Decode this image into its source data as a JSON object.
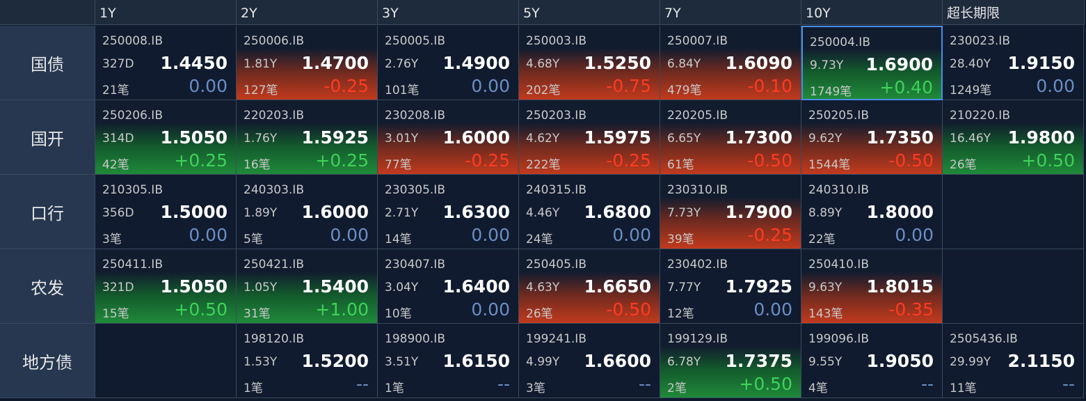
{
  "header": {
    "columns": [
      "1Y",
      "2Y",
      "3Y",
      "5Y",
      "7Y",
      "10Y",
      "超长期限"
    ]
  },
  "rows": [
    {
      "label": "国债",
      "cells": [
        {
          "code": "250008.IB",
          "term": "327D",
          "yield": "1.4450",
          "count": "21笔",
          "change": "0.00"
        },
        {
          "code": "250006.IB",
          "term": "1.81Y",
          "yield": "1.4700",
          "count": "127笔",
          "change": "-0.25"
        },
        {
          "code": "250005.IB",
          "term": "2.76Y",
          "yield": "1.4900",
          "count": "101笔",
          "change": "0.00"
        },
        {
          "code": "250003.IB",
          "term": "4.68Y",
          "yield": "1.5250",
          "count": "202笔",
          "change": "-0.75"
        },
        {
          "code": "250007.IB",
          "term": "6.84Y",
          "yield": "1.6090",
          "count": "479笔",
          "change": "-0.10"
        },
        {
          "code": "250004.IB",
          "term": "9.73Y",
          "yield": "1.6900",
          "count": "1749笔",
          "change": "+0.40"
        },
        {
          "code": "230023.IB",
          "term": "28.40Y",
          "yield": "1.9150",
          "count": "1249笔",
          "change": "0.00"
        }
      ]
    },
    {
      "label": "国开",
      "cells": [
        {
          "code": "250206.IB",
          "term": "314D",
          "yield": "1.5050",
          "count": "42笔",
          "change": "+0.25"
        },
        {
          "code": "220203.IB",
          "term": "1.76Y",
          "yield": "1.5925",
          "count": "16笔",
          "change": "+0.25"
        },
        {
          "code": "230208.IB",
          "term": "3.01Y",
          "yield": "1.6000",
          "count": "77笔",
          "change": "-0.25"
        },
        {
          "code": "250203.IB",
          "term": "4.62Y",
          "yield": "1.5975",
          "count": "222笔",
          "change": "-0.25"
        },
        {
          "code": "220205.IB",
          "term": "6.65Y",
          "yield": "1.7300",
          "count": "61笔",
          "change": "-0.50"
        },
        {
          "code": "250205.IB",
          "term": "9.62Y",
          "yield": "1.7350",
          "count": "1544笔",
          "change": "-0.50"
        },
        {
          "code": "210220.IB",
          "term": "16.46Y",
          "yield": "1.9800",
          "count": "26笔",
          "change": "+0.50"
        }
      ]
    },
    {
      "label": "口行",
      "cells": [
        {
          "code": "210305.IB",
          "term": "356D",
          "yield": "1.5000",
          "count": "3笔",
          "change": "0.00"
        },
        {
          "code": "240303.IB",
          "term": "1.89Y",
          "yield": "1.6000",
          "count": "5笔",
          "change": "0.00"
        },
        {
          "code": "230305.IB",
          "term": "2.71Y",
          "yield": "1.6300",
          "count": "14笔",
          "change": "0.00"
        },
        {
          "code": "240315.IB",
          "term": "4.46Y",
          "yield": "1.6800",
          "count": "24笔",
          "change": "0.00"
        },
        {
          "code": "230310.IB",
          "term": "7.73Y",
          "yield": "1.7900",
          "count": "39笔",
          "change": "-0.25"
        },
        {
          "code": "240310.IB",
          "term": "8.89Y",
          "yield": "1.8000",
          "count": "22笔",
          "change": "0.00"
        },
        null
      ]
    },
    {
      "label": "农发",
      "cells": [
        {
          "code": "250411.IB",
          "term": "321D",
          "yield": "1.5050",
          "count": "15笔",
          "change": "+0.50"
        },
        {
          "code": "250421.IB",
          "term": "1.05Y",
          "yield": "1.5400",
          "count": "31笔",
          "change": "+1.00"
        },
        {
          "code": "230407.IB",
          "term": "3.04Y",
          "yield": "1.6400",
          "count": "10笔",
          "change": "0.00"
        },
        {
          "code": "250405.IB",
          "term": "4.63Y",
          "yield": "1.6650",
          "count": "26笔",
          "change": "-0.50"
        },
        {
          "code": "230402.IB",
          "term": "7.77Y",
          "yield": "1.7925",
          "count": "12笔",
          "change": "0.00"
        },
        {
          "code": "250410.IB",
          "term": "9.63Y",
          "yield": "1.8015",
          "count": "143笔",
          "change": "-0.35"
        },
        null
      ]
    },
    {
      "label": "地方债",
      "cells": [
        null,
        {
          "code": "198120.IB",
          "term": "1.53Y",
          "yield": "1.5200",
          "count": "1笔",
          "change": "--"
        },
        {
          "code": "198900.IB",
          "term": "3.51Y",
          "yield": "1.6150",
          "count": "1笔",
          "change": "--"
        },
        {
          "code": "199241.IB",
          "term": "4.99Y",
          "yield": "1.6600",
          "count": "3笔",
          "change": "--"
        },
        {
          "code": "199129.IB",
          "term": "6.78Y",
          "yield": "1.7375",
          "count": "2笔",
          "change": "+0.50"
        },
        {
          "code": "199096.IB",
          "term": "9.55Y",
          "yield": "1.9050",
          "count": "4笔",
          "change": "--"
        },
        {
          "code": "2505436.IB",
          "term": "29.99Y",
          "yield": "2.1150",
          "count": "11笔",
          "change": "--"
        }
      ]
    }
  ]
}
